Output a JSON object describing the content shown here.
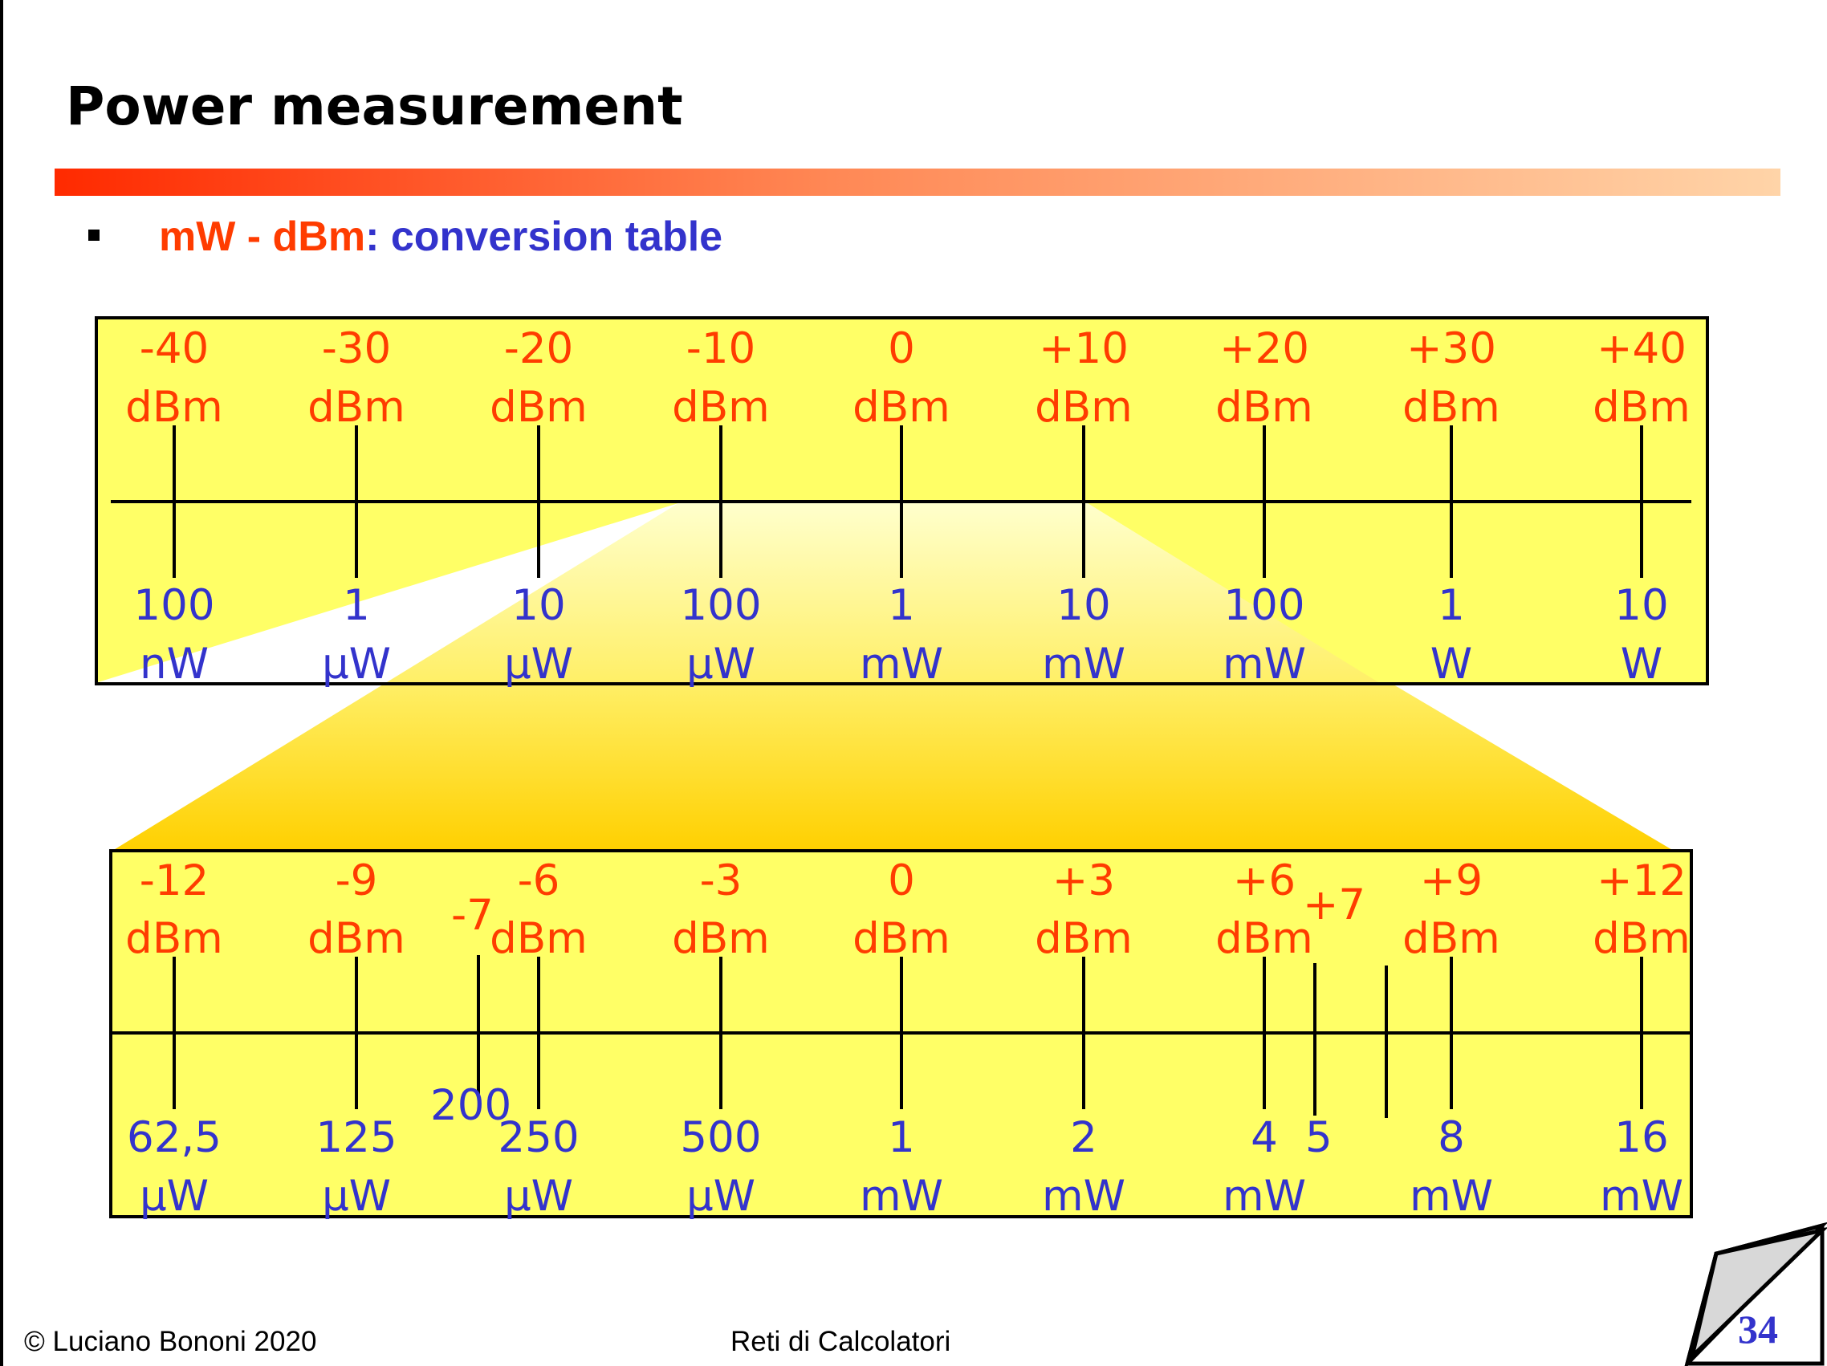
{
  "title": "Power measurement",
  "bullet": {
    "part1": "mW - dBm",
    "part2": ": conversion table"
  },
  "colors": {
    "dbm": "#ff3c00",
    "power": "#3333cc",
    "box": "#ffff66"
  },
  "top_scale": {
    "dbm": [
      [
        "-40",
        "dBm"
      ],
      [
        "-30",
        "dBm"
      ],
      [
        "-20",
        "dBm"
      ],
      [
        "-10",
        "dBm"
      ],
      [
        "0",
        "dBm"
      ],
      [
        "+10",
        "dBm"
      ],
      [
        "+20",
        "dBm"
      ],
      [
        "+30",
        "dBm"
      ],
      [
        "+40",
        "dBm"
      ]
    ],
    "power": [
      [
        "100",
        "nW"
      ],
      [
        "1",
        "µW"
      ],
      [
        "10",
        "µW"
      ],
      [
        "100",
        "µW"
      ],
      [
        "1",
        "mW"
      ],
      [
        "10",
        "mW"
      ],
      [
        "100",
        "mW"
      ],
      [
        "1",
        "W"
      ],
      [
        "10",
        "W"
      ]
    ]
  },
  "bottom_scale": {
    "dbm": [
      [
        "-12",
        "dBm"
      ],
      [
        "-9",
        "dBm"
      ],
      [
        "-6",
        "dBm"
      ],
      [
        "-3",
        "dBm"
      ],
      [
        "0",
        "dBm"
      ],
      [
        "+3",
        "dBm"
      ],
      [
        "+6",
        "dBm"
      ],
      [
        "+9",
        "dBm"
      ],
      [
        "+12",
        "dBm"
      ]
    ],
    "power": [
      [
        "62,5",
        "µW"
      ],
      [
        "125",
        "µW"
      ],
      [
        "250",
        "µW"
      ],
      [
        "500",
        "µW"
      ],
      [
        "1",
        "mW"
      ],
      [
        "2",
        "mW"
      ],
      [
        "4",
        "mW"
      ],
      [
        "8",
        "mW"
      ],
      [
        "16",
        "mW"
      ]
    ],
    "extra_labels": {
      "minus7": "-7",
      "v200": "200",
      "plus7": "+7",
      "v5": "5"
    }
  },
  "footer": {
    "copyright": "© Luciano Bononi 2020",
    "course": "Reti di Calcolatori",
    "page": "34"
  }
}
